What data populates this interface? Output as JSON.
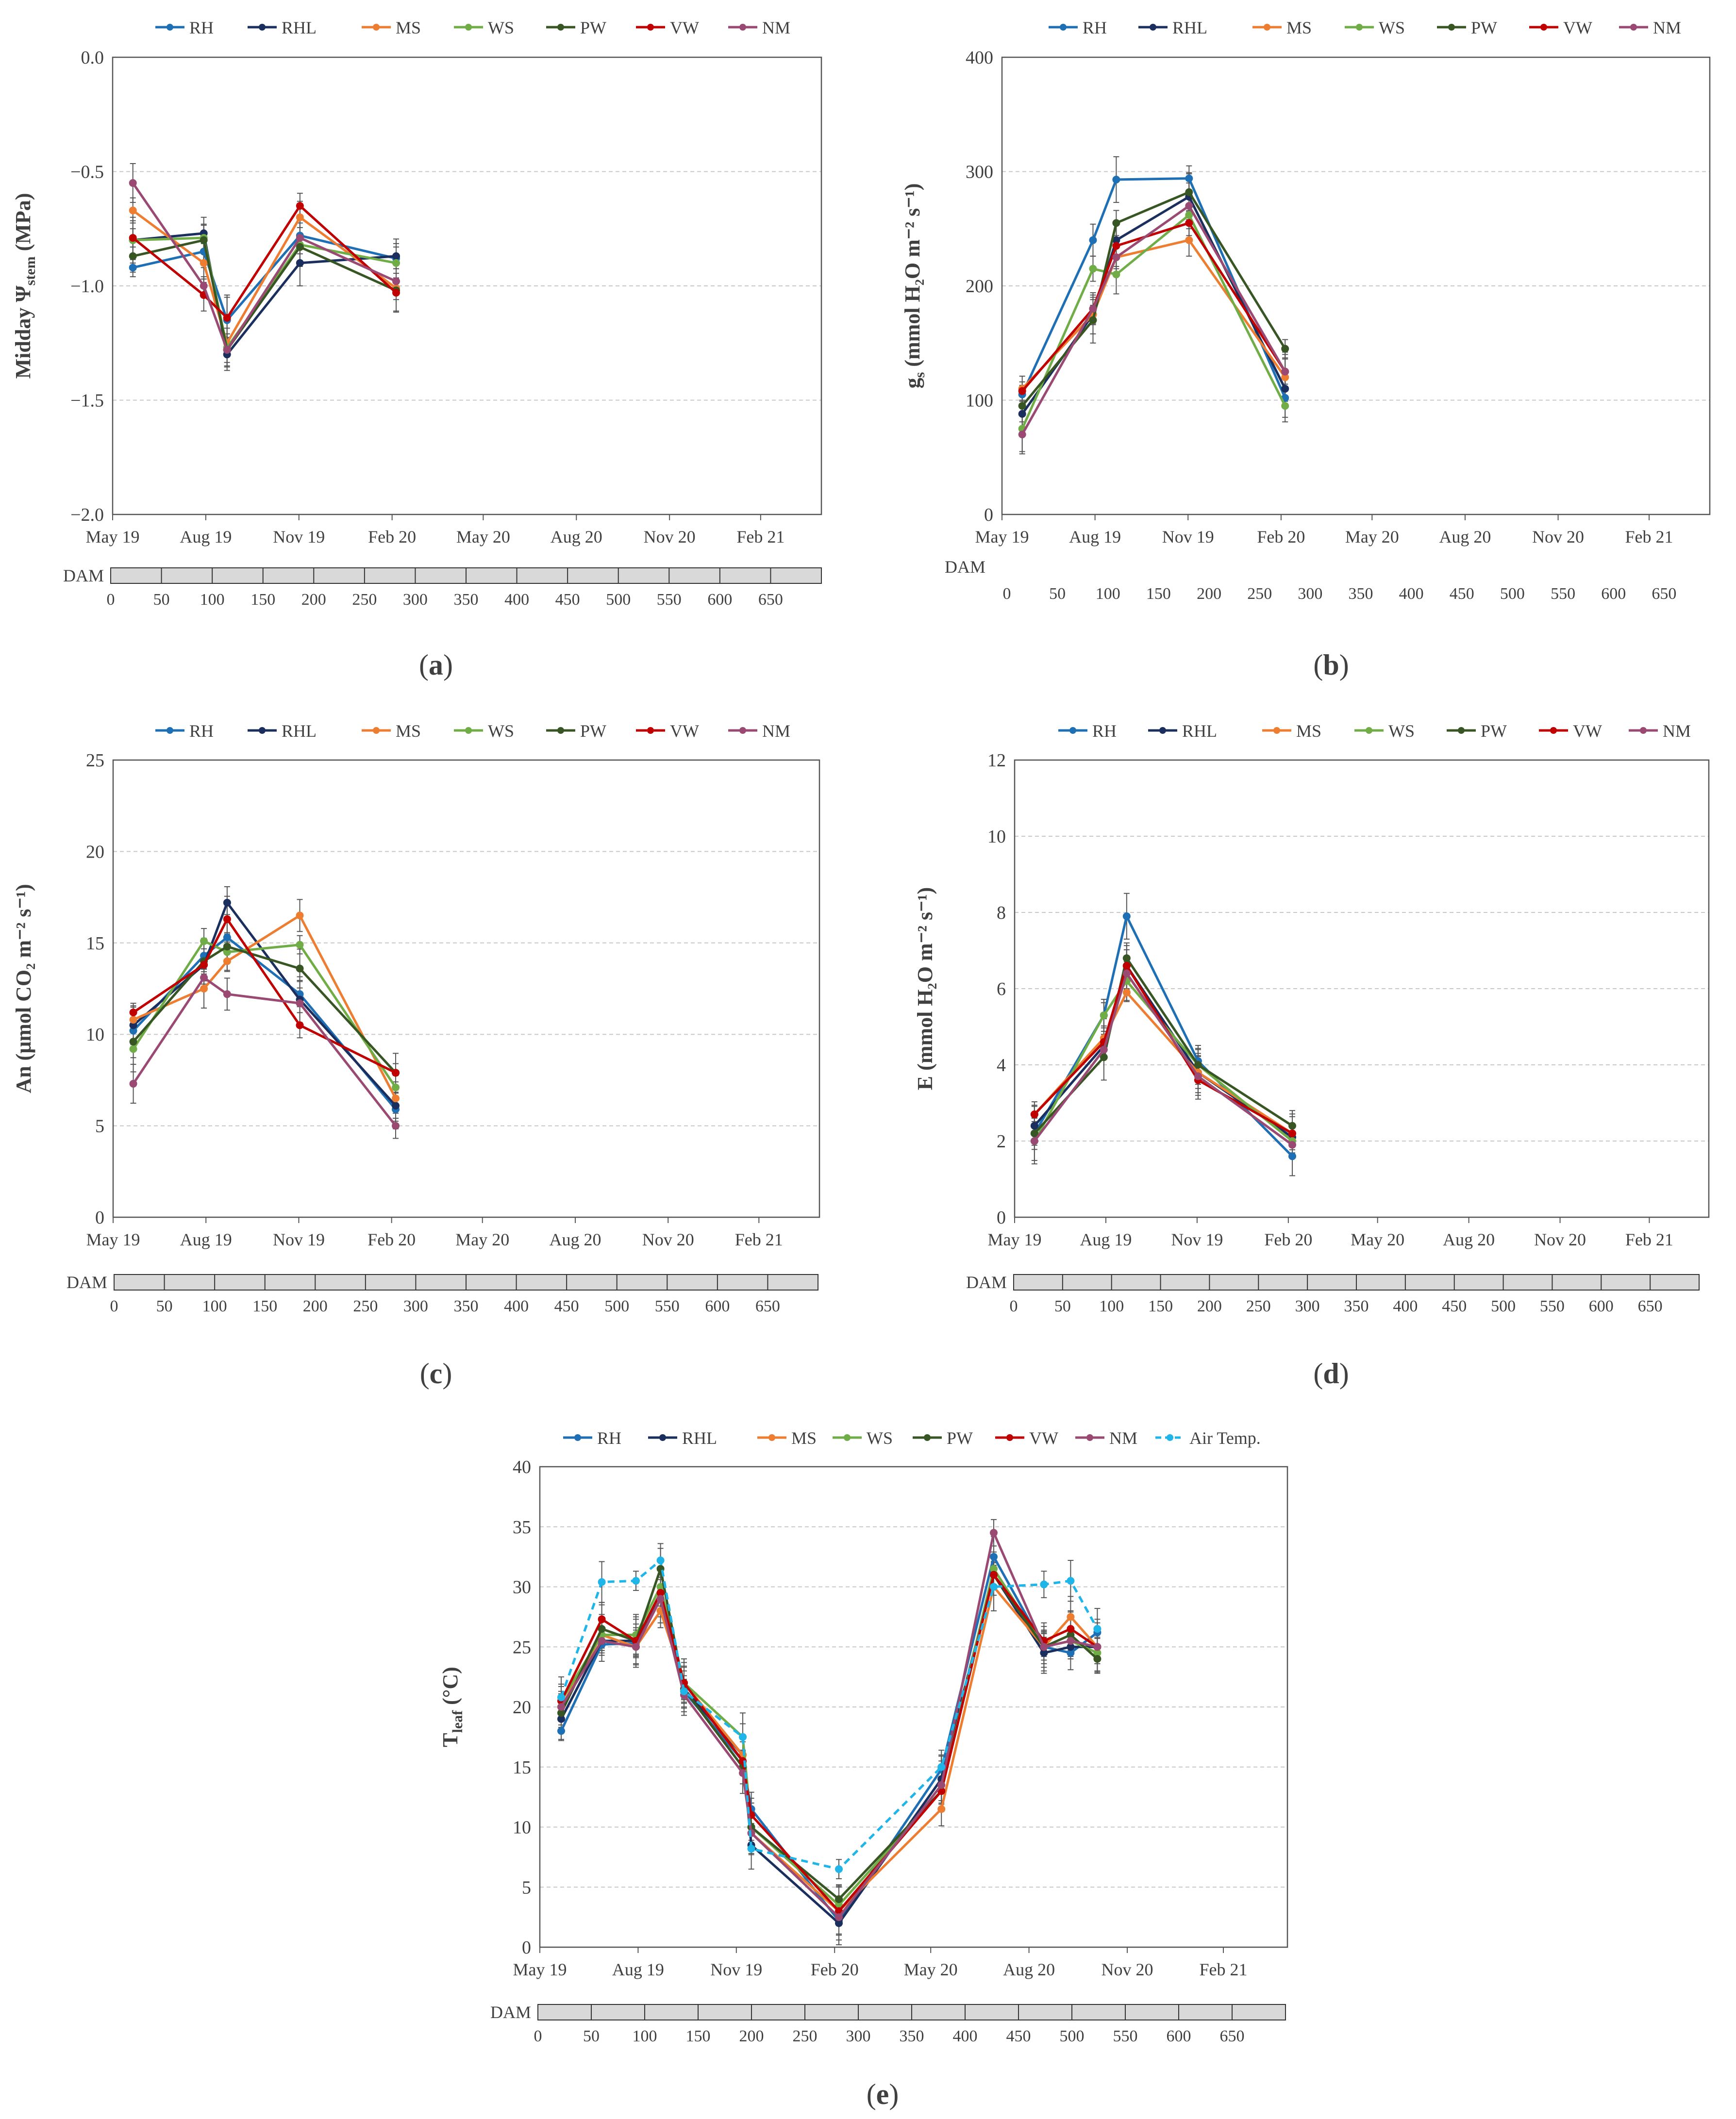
{
  "axis": {
    "months": [
      "May 19",
      "Aug 19",
      "Nov 19",
      "Feb 20",
      "May 20",
      "Aug 20",
      "Nov 20",
      "Feb 21"
    ],
    "dam_label": "DAM",
    "dam_ticks": [
      "0",
      "50",
      "100",
      "150",
      "200",
      "250",
      "300",
      "350",
      "400",
      "450",
      "500",
      "550",
      "600",
      "650"
    ]
  },
  "legend": {
    "RH": "RH",
    "RHL": "RHL",
    "MS": "MS",
    "WS": "WS",
    "PW": "PW",
    "VW": "VW",
    "NM": "NM",
    "AT": "Air Temp."
  },
  "colors": {
    "RH": "#1f6fb5",
    "RHL": "#1b2f5e",
    "MS": "#ed7d31",
    "WS": "#70ad47",
    "PW": "#375623",
    "VW": "#c00000",
    "NM": "#9a4a72",
    "AT": "#1fb5e8"
  },
  "chart_data": [
    {
      "type": "line",
      "id": "a",
      "caption_letter": "a",
      "ylabel": {
        "pre": "Midday Ψ",
        "sub": "stem",
        "post": " (MPa)"
      },
      "ylim": [
        -2.0,
        0.0
      ],
      "yticks": [
        "0.0",
        "−0.5",
        "−1.0",
        "−1.5",
        "−2.0"
      ],
      "ytick_values": [
        0.0,
        -0.5,
        -1.0,
        -1.5,
        -2.0
      ],
      "x_dam": [
        20,
        90,
        113,
        185,
        280
      ],
      "series": [
        {
          "name": "RH",
          "values": [
            -0.92,
            -0.85,
            -1.15,
            -0.78,
            -0.88
          ]
        },
        {
          "name": "RHL",
          "values": [
            -0.8,
            -0.77,
            -1.3,
            -0.9,
            -0.87
          ]
        },
        {
          "name": "MS",
          "values": [
            -0.67,
            -0.9,
            -1.25,
            -0.7,
            -1.01
          ]
        },
        {
          "name": "WS",
          "values": [
            -0.8,
            -0.79,
            -1.27,
            -0.82,
            -0.9
          ]
        },
        {
          "name": "PW",
          "values": [
            -0.87,
            -0.8,
            -1.28,
            -0.83,
            -1.02
          ]
        },
        {
          "name": "VW",
          "values": [
            -0.79,
            -1.04,
            -1.14,
            -0.65,
            -1.03
          ]
        },
        {
          "name": "NM",
          "values": [
            -0.55,
            -1.0,
            -1.28,
            -0.79,
            -0.98
          ]
        }
      ]
    },
    {
      "type": "line",
      "id": "b",
      "caption_letter": "b",
      "ylabel": {
        "pre": "g",
        "sub": "s",
        "post": " (mmol H₂O m⁻² s⁻¹)"
      },
      "ylim": [
        0,
        400
      ],
      "yticks": [
        "0",
        "100",
        "200",
        "300",
        "400"
      ],
      "ytick_values": [
        0,
        100,
        200,
        300,
        400
      ],
      "x_dam": [
        20,
        90,
        113,
        185,
        280
      ],
      "series": [
        {
          "name": "RH",
          "values": [
            105,
            240,
            293,
            294,
            102
          ]
        },
        {
          "name": "RHL",
          "values": [
            88,
            175,
            240,
            278,
            110
          ]
        },
        {
          "name": "MS",
          "values": [
            110,
            175,
            225,
            240,
            120
          ]
        },
        {
          "name": "WS",
          "values": [
            75,
            215,
            210,
            262,
            95
          ]
        },
        {
          "name": "PW",
          "values": [
            95,
            170,
            255,
            282,
            145
          ]
        },
        {
          "name": "VW",
          "values": [
            108,
            180,
            235,
            255,
            125
          ]
        },
        {
          "name": "NM",
          "values": [
            70,
            180,
            225,
            270,
            125
          ]
        }
      ]
    },
    {
      "type": "line",
      "id": "c",
      "caption_letter": "c",
      "ylabel": {
        "pre": "An (μmol CO₂ m⁻² s⁻¹)",
        "sub": "",
        "post": ""
      },
      "ylim": [
        0,
        25
      ],
      "yticks": [
        "0",
        "5",
        "10",
        "15",
        "20",
        "25"
      ],
      "ytick_values": [
        0,
        5,
        10,
        15,
        20,
        25
      ],
      "x_dam": [
        20,
        90,
        113,
        185,
        280
      ],
      "series": [
        {
          "name": "RH",
          "values": [
            10.2,
            14.3,
            15.3,
            12.2,
            5.9
          ]
        },
        {
          "name": "RHL",
          "values": [
            10.5,
            13.8,
            17.2,
            11.9,
            6.1
          ]
        },
        {
          "name": "MS",
          "values": [
            10.8,
            12.5,
            14.0,
            16.5,
            6.5
          ]
        },
        {
          "name": "WS",
          "values": [
            9.2,
            15.1,
            14.5,
            14.9,
            7.1
          ]
        },
        {
          "name": "PW",
          "values": [
            9.6,
            14.0,
            14.8,
            13.6,
            7.9
          ]
        },
        {
          "name": "VW",
          "values": [
            11.2,
            13.8,
            16.3,
            10.5,
            7.9
          ]
        },
        {
          "name": "NM",
          "values": [
            7.3,
            13.1,
            12.2,
            11.7,
            5.0
          ]
        }
      ]
    },
    {
      "type": "line",
      "id": "d",
      "caption_letter": "d",
      "ylabel": {
        "pre": "E (mmol H₂O m⁻² s⁻¹)",
        "sub": "",
        "post": ""
      },
      "ylim": [
        0,
        12
      ],
      "yticks": [
        "0",
        "2",
        "4",
        "6",
        "8",
        "10",
        "12"
      ],
      "ytick_values": [
        0,
        2,
        4,
        6,
        8,
        10,
        12
      ],
      "x_dam": [
        20,
        90,
        113,
        185,
        280
      ],
      "series": [
        {
          "name": "RH",
          "values": [
            2.2,
            5.3,
            7.9,
            4.1,
            1.6
          ]
        },
        {
          "name": "RHL",
          "values": [
            2.4,
            4.5,
            6.6,
            3.8,
            2.1
          ]
        },
        {
          "name": "MS",
          "values": [
            2.7,
            4.7,
            5.9,
            3.8,
            2.2
          ]
        },
        {
          "name": "WS",
          "values": [
            2.0,
            5.3,
            6.2,
            4.0,
            2.0
          ]
        },
        {
          "name": "PW",
          "values": [
            2.2,
            4.2,
            6.8,
            4.0,
            2.4
          ]
        },
        {
          "name": "VW",
          "values": [
            2.7,
            4.6,
            6.6,
            3.6,
            2.2
          ]
        },
        {
          "name": "NM",
          "values": [
            2.0,
            4.4,
            6.4,
            3.7,
            1.9
          ]
        }
      ]
    },
    {
      "type": "line",
      "id": "e",
      "caption_letter": "e",
      "ylabel": {
        "pre": "T",
        "sub": "leaf",
        "post": " (°C)"
      },
      "ylim": [
        0,
        40
      ],
      "yticks": [
        "0",
        "5",
        "10",
        "15",
        "20",
        "25",
        "30",
        "35",
        "40"
      ],
      "ytick_values": [
        0,
        5,
        10,
        15,
        20,
        25,
        30,
        35,
        40
      ],
      "x_dam": [
        20,
        58,
        90,
        113,
        135,
        190,
        198,
        280,
        376,
        425,
        472,
        497,
        522
      ],
      "series": [
        {
          "name": "RH",
          "values": [
            18.0,
            25.2,
            25.3,
            29.0,
            21.3,
            15.5,
            11.5,
            2.2,
            14.8,
            32.5,
            25.0,
            24.5,
            26.2
          ]
        },
        {
          "name": "RHL",
          "values": [
            19.0,
            25.5,
            25.5,
            29.5,
            21.5,
            16.0,
            8.5,
            2.0,
            14.0,
            31.0,
            24.5,
            25.0,
            25.0
          ]
        },
        {
          "name": "MS",
          "values": [
            20.0,
            26.0,
            25.0,
            28.0,
            22.0,
            16.0,
            9.5,
            3.0,
            11.5,
            30.0,
            25.0,
            27.5,
            25.0
          ]
        },
        {
          "name": "WS",
          "values": [
            20.5,
            26.0,
            26.0,
            30.0,
            22.0,
            17.5,
            10.0,
            3.5,
            13.0,
            31.5,
            25.0,
            25.5,
            24.5
          ]
        },
        {
          "name": "PW",
          "values": [
            19.5,
            26.5,
            25.5,
            31.5,
            21.5,
            15.0,
            10.0,
            4.0,
            13.0,
            31.0,
            25.0,
            26.0,
            24.0
          ]
        },
        {
          "name": "VW",
          "values": [
            20.5,
            27.3,
            25.5,
            29.5,
            22.0,
            15.5,
            11.0,
            3.0,
            13.0,
            31.0,
            25.5,
            26.5,
            25.0
          ]
        },
        {
          "name": "NM",
          "values": [
            20.0,
            25.5,
            25.0,
            29.0,
            21.0,
            14.5,
            9.5,
            2.5,
            13.5,
            34.5,
            25.0,
            25.5,
            25.0
          ]
        },
        {
          "name": "AT",
          "values": [
            20.8,
            30.4,
            30.5,
            32.2,
            21.3,
            17.5,
            8.2,
            6.5,
            15.0,
            30.0,
            30.2,
            30.5,
            26.5
          ],
          "dashed": true
        }
      ]
    }
  ]
}
